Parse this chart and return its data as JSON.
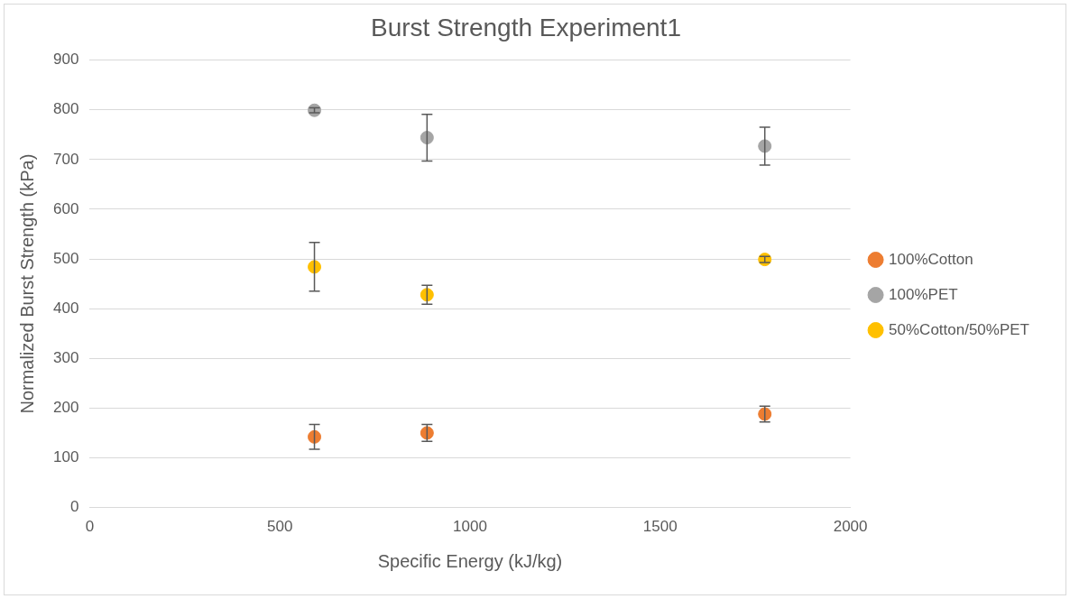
{
  "chart_data": {
    "type": "scatter",
    "title": "Burst Strength Experiment1",
    "xlabel": "Specific Energy (kJ/kg)",
    "ylabel": "Normalized Burst Strength (kPa)",
    "xlim": [
      0,
      2000
    ],
    "xticks": [
      0,
      500,
      1000,
      1500,
      2000
    ],
    "ylim": [
      0,
      900
    ],
    "yticks": [
      0,
      100,
      200,
      300,
      400,
      500,
      600,
      700,
      800,
      900
    ],
    "grid": "y",
    "legend": "right",
    "marker": "circle",
    "series": [
      {
        "name": "100%Cotton",
        "color": "#ed7d31",
        "x": [
          591,
          887,
          1775
        ],
        "values": [
          142,
          150,
          188
        ],
        "errors": [
          25,
          17,
          16
        ]
      },
      {
        "name": "100%PET",
        "color": "#a5a5a5",
        "x": [
          591,
          887,
          1775
        ],
        "values": [
          799,
          744,
          727
        ],
        "errors": [
          5,
          47,
          38
        ]
      },
      {
        "name": "50%Cotton/50%PET",
        "color": "#ffc000",
        "x": [
          591,
          887,
          1775
        ],
        "values": [
          484,
          428,
          499
        ],
        "errors": [
          49,
          19,
          6
        ]
      }
    ]
  }
}
